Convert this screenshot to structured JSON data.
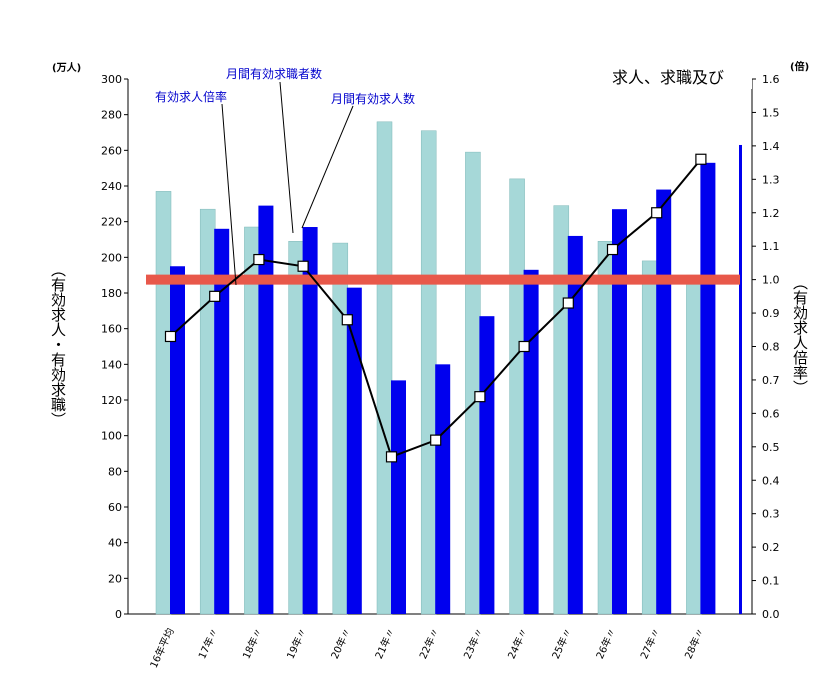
{
  "chart_data": {
    "type": "bar",
    "title": "求人、求職及び",
    "left_unit": "(万人)",
    "right_unit": "(倍)",
    "left_axis_label": "（有効求人・有効求職）",
    "right_axis_label": "（有効求人倍率）",
    "categories": [
      "16年平均",
      "17年〃",
      "18年〃",
      "19年〃",
      "20年〃",
      "21年〃",
      "22年〃",
      "23年〃",
      "24年〃",
      "25年〃",
      "26年〃",
      "27年〃",
      "28年〃"
    ],
    "series": [
      {
        "name": "月間有効求職者数",
        "values": [
          237,
          227,
          217,
          209,
          208,
          276,
          271,
          259,
          244,
          229,
          209,
          198,
          190
        ]
      },
      {
        "name": "月間有効求人数",
        "values": [
          195,
          216,
          229,
          217,
          183,
          131,
          140,
          167,
          193,
          212,
          227,
          238,
          253
        ]
      },
      {
        "name": "有効求人倍率",
        "values": [
          0.83,
          0.95,
          1.06,
          1.04,
          0.88,
          0.47,
          0.52,
          0.65,
          0.8,
          0.93,
          1.09,
          1.2,
          1.36
        ]
      }
    ],
    "ylim": [
      0,
      300
    ],
    "yticks": [
      "0",
      "20",
      "40",
      "60",
      "80",
      "100",
      "120",
      "140",
      "160",
      "180",
      "200",
      "220",
      "240",
      "260",
      "280",
      "300"
    ],
    "y2lim": [
      0,
      1.6
    ],
    "y2ticks": [
      "0.0",
      "0.1",
      "0.2",
      "0.3",
      "0.4",
      "0.5",
      "0.6",
      "0.7",
      "0.8",
      "0.9",
      "1.0",
      "1.1",
      "1.2",
      "1.3",
      "1.4",
      "1.5",
      "1.6"
    ],
    "reference_line": {
      "value": 1.0,
      "axis": "right",
      "color": "#e8584a"
    },
    "colors": {
      "job_seekers": "#a6d8d8",
      "openings": "#0000ee",
      "ratio_line": "#000000",
      "marker_fill": "#ffffff",
      "annotation": "#0000cc"
    }
  }
}
